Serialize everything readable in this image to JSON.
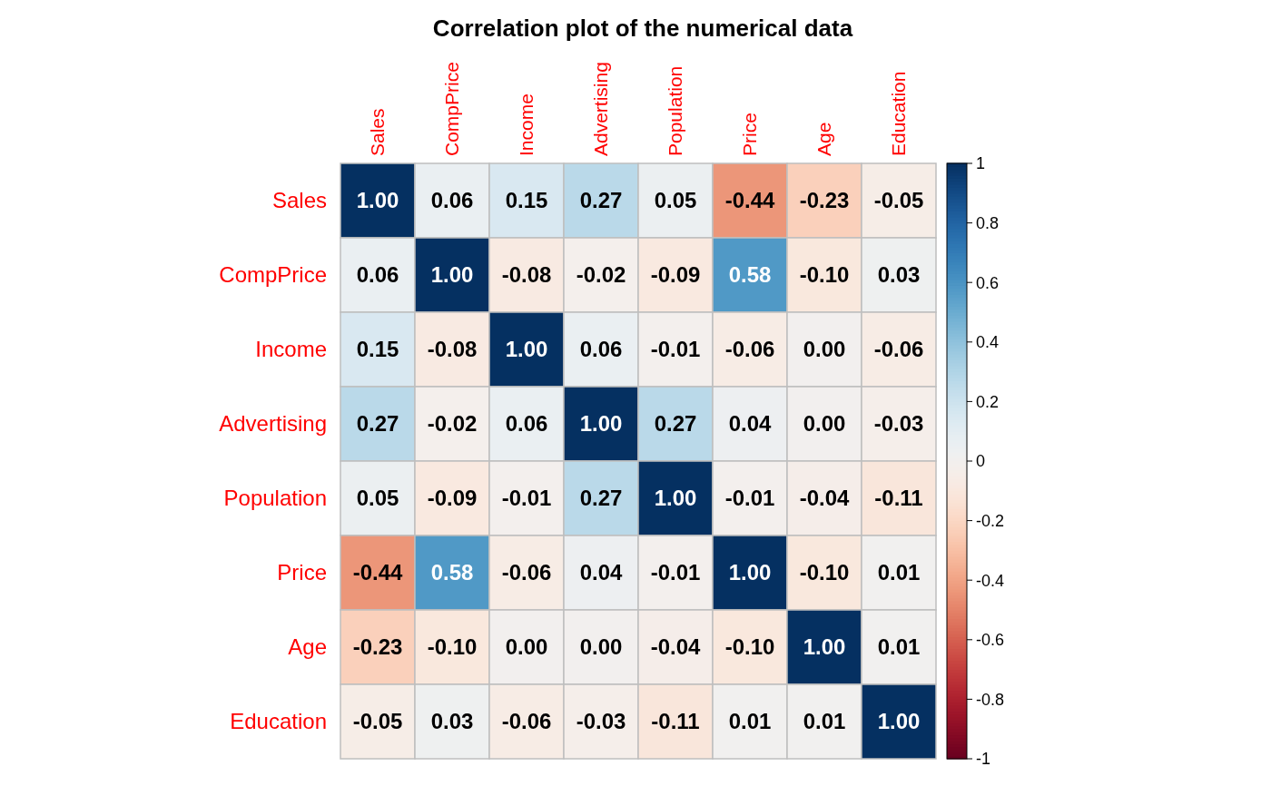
{
  "chart_data": {
    "type": "heatmap",
    "title": "Correlation plot of the numerical data",
    "categories": [
      "Sales",
      "CompPrice",
      "Income",
      "Advertising",
      "Population",
      "Price",
      "Age",
      "Education"
    ],
    "y_categories": [
      "Sales",
      "CompPrice",
      "Income",
      "Advertising",
      "Population",
      "Price",
      "Age",
      "Education"
    ],
    "cells": [
      [
        1.0,
        0.06,
        0.15,
        0.27,
        0.05,
        -0.44,
        -0.23,
        -0.05
      ],
      [
        0.06,
        1.0,
        -0.08,
        -0.02,
        -0.09,
        0.58,
        -0.1,
        0.03
      ],
      [
        0.15,
        -0.08,
        1.0,
        0.06,
        -0.01,
        -0.06,
        0.0,
        -0.06
      ],
      [
        0.27,
        -0.02,
        0.06,
        1.0,
        0.27,
        0.04,
        0.0,
        -0.03
      ],
      [
        0.05,
        -0.09,
        -0.01,
        0.27,
        1.0,
        -0.01,
        -0.04,
        -0.11
      ],
      [
        -0.44,
        0.58,
        -0.06,
        0.04,
        -0.01,
        1.0,
        -0.1,
        0.01
      ],
      [
        -0.23,
        -0.1,
        0.0,
        0.0,
        -0.04,
        -0.1,
        1.0,
        0.01
      ],
      [
        -0.05,
        0.03,
        -0.06,
        -0.03,
        -0.11,
        0.01,
        0.01,
        1.0
      ]
    ],
    "cell_labels": [
      [
        "1.00",
        "0.06",
        "0.15",
        "0.27",
        "0.05",
        "-0.44",
        "-0.23",
        "-0.05"
      ],
      [
        "0.06",
        "1.00",
        "-0.08",
        "-0.02",
        "-0.09",
        "0.58",
        "-0.10",
        "0.03"
      ],
      [
        "0.15",
        "-0.08",
        "1.00",
        "0.06",
        "-0.01",
        "-0.06",
        "0.00",
        "-0.06"
      ],
      [
        "0.27",
        "-0.02",
        "0.06",
        "1.00",
        "0.27",
        "0.04",
        "0.00",
        "-0.03"
      ],
      [
        "0.05",
        "-0.09",
        "-0.01",
        "0.27",
        "1.00",
        "-0.01",
        "-0.04",
        "-0.11"
      ],
      [
        "-0.44",
        "0.58",
        "-0.06",
        "0.04",
        "-0.01",
        "1.00",
        "-0.10",
        "0.01"
      ],
      [
        "-0.23",
        "-0.10",
        "0.00",
        "0.00",
        "-0.04",
        "-0.10",
        "1.00",
        "0.01"
      ],
      [
        "-0.05",
        "0.03",
        "-0.06",
        "-0.03",
        "-0.11",
        "0.01",
        "0.01",
        "1.00"
      ]
    ],
    "clim": [
      -1,
      1
    ],
    "cticks": [
      -1,
      -0.8,
      -0.6,
      -0.4,
      -0.2,
      0,
      0.2,
      0.4,
      0.6,
      0.8,
      1
    ]
  }
}
